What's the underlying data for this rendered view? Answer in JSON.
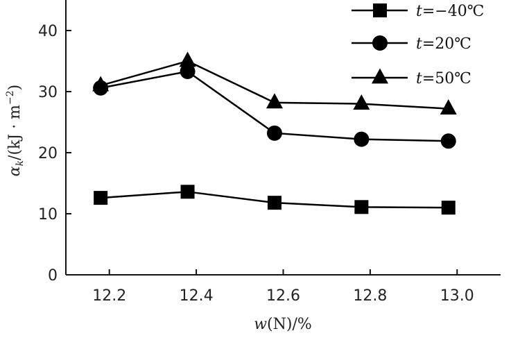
{
  "chart_data": {
    "type": "line",
    "title": "",
    "xlabel_var": "w",
    "xlabel_rest": "(N)/%",
    "ylabel_var": "α",
    "ylabel_sub": "k",
    "ylabel_rest": "/(kJ · m",
    "ylabel_exp": "−2",
    "ylabel_close": ")",
    "xlim": [
      12.1,
      13.1
    ],
    "ylim": [
      0,
      45
    ],
    "x_ticks": [
      12.2,
      12.4,
      12.6,
      12.8,
      13.0
    ],
    "x_tick_labels": [
      "12.2",
      "12.4",
      "12.6",
      "12.8",
      "13.0"
    ],
    "y_ticks": [
      0,
      10,
      20,
      30,
      40
    ],
    "y_tick_labels": [
      "0",
      "10",
      "20",
      "30",
      "40"
    ],
    "x": [
      12.18,
      12.38,
      12.58,
      12.78,
      12.98
    ],
    "series": [
      {
        "name_var": "t",
        "name_rest": "=−40℃",
        "marker": "square",
        "values": [
          12.6,
          13.6,
          11.8,
          11.1,
          11.0
        ]
      },
      {
        "name_var": "t",
        "name_rest": "=20℃",
        "marker": "circle",
        "values": [
          30.6,
          33.3,
          23.2,
          22.2,
          21.9
        ]
      },
      {
        "name_var": "t",
        "name_rest": "=50℃",
        "marker": "triangle",
        "values": [
          31.0,
          35.0,
          28.2,
          28.0,
          27.2
        ]
      }
    ],
    "legend_position": "top-right"
  }
}
